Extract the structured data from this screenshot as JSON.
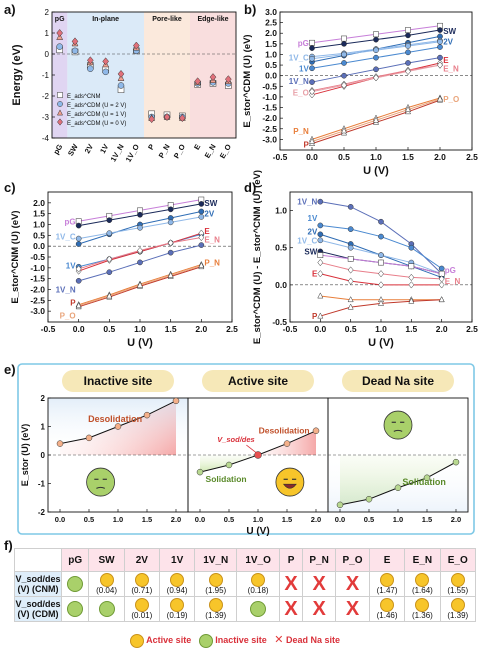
{
  "chart_data": [
    {
      "id": "a",
      "type": "scatter",
      "ylabel": "Energy (eV)",
      "ylim": [
        -4,
        2
      ],
      "yticks": [
        2,
        1,
        0,
        -1,
        -2,
        -3,
        -4
      ],
      "categories": [
        "pG",
        "SW",
        "2V",
        "1V",
        "1V_N",
        "1V_O",
        "P",
        "P_N",
        "P_O",
        "E",
        "E_N",
        "E_O"
      ],
      "regions": [
        {
          "label": "pG",
          "from": 0,
          "to": 0,
          "color": "#d6c7ee"
        },
        {
          "label": "In-plane",
          "from": 1,
          "to": 5,
          "color": "#cfe3f6"
        },
        {
          "label": "Pore-like",
          "from": 6,
          "to": 8,
          "color": "#f9e2d0"
        },
        {
          "label": "Edge-like",
          "from": 9,
          "to": 11,
          "color": "#f7d3d3"
        }
      ],
      "series": [
        {
          "name": "E_ads^CNM",
          "marker": "square",
          "color": "#555555",
          "values": [
            0.2,
            0.1,
            -0.55,
            -0.75,
            -1.7,
            0.15,
            -2.85,
            -2.9,
            -2.95,
            -1.45,
            -1.4,
            -1.5
          ]
        },
        {
          "name": "E_ads^CDM (U = 2 V)",
          "marker": "circle",
          "color": "#8fb8e8",
          "values": [
            0.35,
            0.15,
            -0.7,
            -0.85,
            -1.5,
            0.15,
            -3.0,
            -3.0,
            -3.0,
            -1.4,
            -1.35,
            -1.4
          ]
        },
        {
          "name": "E_ads^CDM (U = 1 V)",
          "marker": "triangle",
          "color": "#f0a090",
          "values": [
            0.8,
            0.5,
            -0.4,
            -0.5,
            -1.15,
            0.3,
            -3.05,
            -3.0,
            -3.05,
            -1.35,
            -1.25,
            -1.3
          ]
        },
        {
          "name": "E_ads^CDM (U = 0 V)",
          "marker": "diamond",
          "color": "#e0707a",
          "values": [
            1.0,
            0.6,
            -0.3,
            -0.35,
            -0.95,
            0.4,
            -3.1,
            -3.0,
            -3.05,
            -1.3,
            -1.1,
            -1.2
          ]
        }
      ],
      "legend": [
        "E_ads^CNM",
        "E_ads^CDM (U = 2 V)",
        "E_ads^CDM (U = 1 V)",
        "E_ads^CDM (U = 0 V)"
      ]
    },
    {
      "id": "b",
      "type": "line",
      "ylabel": "E_stor^CDM (U) (eV)",
      "xlabel": "U (V)",
      "xlim": [
        -0.5,
        2.5
      ],
      "ylim": [
        -3.5,
        3.0
      ],
      "xticks": [
        -0.5,
        0.0,
        0.5,
        1.0,
        1.5,
        2.0,
        2.5
      ],
      "yticks": [
        3.0,
        2.5,
        2.0,
        1.5,
        1.0,
        0.5,
        0.0,
        -0.5,
        -1.0,
        -1.5,
        -2.0,
        -2.5,
        -3.0
      ],
      "x": [
        0,
        0.5,
        1.0,
        1.5,
        2.0
      ],
      "series": [
        {
          "name": "pG",
          "color": "#c77fd9",
          "marker": "square",
          "values": [
            1.55,
            1.75,
            1.95,
            2.15,
            2.35
          ]
        },
        {
          "name": "SW",
          "color": "#1b2a5a",
          "marker": "circle",
          "values": [
            1.3,
            1.5,
            1.7,
            1.9,
            2.15
          ]
        },
        {
          "name": "2V",
          "color": "#2f6db5",
          "marker": "circle",
          "values": [
            0.65,
            0.95,
            1.25,
            1.55,
            1.85
          ]
        },
        {
          "name": "1V_C",
          "color": "#8fb8e8",
          "marker": "circle",
          "values": [
            0.9,
            1.05,
            1.25,
            1.45,
            1.65
          ]
        },
        {
          "name": "1V",
          "color": "#4a89d0",
          "marker": "circle",
          "values": [
            0.35,
            0.6,
            0.85,
            1.1,
            1.35
          ]
        },
        {
          "name": "1V_N",
          "color": "#5b6fb8",
          "marker": "circle",
          "values": [
            -0.3,
            0.0,
            0.3,
            0.6,
            0.85
          ]
        },
        {
          "name": "1V_O",
          "color": "#8fb8e8",
          "marker": "circle",
          "values": [
            0.8,
            1.0,
            1.2,
            1.4,
            1.6
          ]
        },
        {
          "name": "E",
          "color": "#d9303a",
          "marker": "diamond",
          "values": [
            -0.9,
            -0.5,
            -0.1,
            0.25,
            0.6
          ]
        },
        {
          "name": "E_N",
          "color": "#e87e8a",
          "marker": "diamond",
          "values": [
            -0.7,
            -0.4,
            -0.05,
            0.25,
            0.5
          ]
        },
        {
          "name": "E_O",
          "color": "#e8a0a8",
          "marker": "diamond",
          "values": [
            -0.75,
            -0.45,
            -0.1,
            0.2,
            0.5
          ]
        },
        {
          "name": "P_N",
          "color": "#e87e3a",
          "marker": "triangle",
          "values": [
            -3.0,
            -2.5,
            -2.0,
            -1.5,
            -1.05
          ]
        },
        {
          "name": "P",
          "color": "#c0392b",
          "marker": "triangle",
          "values": [
            -3.2,
            -2.7,
            -2.2,
            -1.7,
            -1.15
          ]
        },
        {
          "name": "P_O",
          "color": "#e9a47a",
          "marker": "triangle",
          "values": [
            -3.1,
            -2.6,
            -2.1,
            -1.6,
            -1.1
          ]
        }
      ],
      "labels": [
        "pG",
        "SW",
        "2V",
        "1V_C",
        "1V",
        "1V_N",
        "1V_O",
        "E",
        "E_N",
        "E_O",
        "P_N",
        "P",
        "P_O"
      ]
    },
    {
      "id": "c",
      "type": "line",
      "ylabel": "E_stor^CNM (U) (eV)",
      "xlabel": "U (V)",
      "xlim": [
        -0.5,
        2.5
      ],
      "ylim": [
        -3.5,
        2.5
      ],
      "xticks": [
        -0.5,
        0.0,
        0.5,
        1.0,
        1.5,
        2.0,
        2.5
      ],
      "yticks": [
        2.0,
        1.5,
        1.0,
        0.5,
        0.0,
        -0.5,
        -1.0,
        -1.5,
        -2.0,
        -2.5,
        -3.0
      ],
      "x": [
        0,
        0.5,
        1.0,
        1.5,
        2.0
      ],
      "series": [
        {
          "name": "pG",
          "color": "#c77fd9",
          "marker": "square",
          "values": [
            1.15,
            1.4,
            1.65,
            1.9,
            2.15
          ]
        },
        {
          "name": "SW",
          "color": "#1b2a5a",
          "marker": "circle",
          "values": [
            0.95,
            1.2,
            1.45,
            1.7,
            1.95
          ]
        },
        {
          "name": "2V",
          "color": "#2f6db5",
          "marker": "circle",
          "values": [
            0.1,
            0.55,
            1.0,
            1.3,
            1.6
          ]
        },
        {
          "name": "1V_C",
          "color": "#8fb8e8",
          "marker": "circle",
          "values": [
            0.35,
            0.6,
            0.85,
            1.1,
            1.35
          ]
        },
        {
          "name": "1V",
          "color": "#4a89d0",
          "marker": "circle",
          "values": [
            -0.95,
            -0.6,
            -0.25,
            0.15,
            0.55
          ]
        },
        {
          "name": "1V_N",
          "color": "#5b6fb8",
          "marker": "circle",
          "values": [
            -1.6,
            -1.2,
            -0.75,
            -0.3,
            0.05
          ]
        },
        {
          "name": "E",
          "color": "#d9303a",
          "marker": "diamond",
          "values": [
            -1.15,
            -0.65,
            -0.25,
            0.15,
            0.6
          ]
        },
        {
          "name": "E_N",
          "color": "#e87e8a",
          "marker": "diamond",
          "values": [
            -1.05,
            -0.6,
            -0.2,
            0.15,
            0.4
          ]
        },
        {
          "name": "P_N",
          "color": "#e87e3a",
          "marker": "triangle",
          "values": [
            -2.7,
            -2.25,
            -1.75,
            -1.3,
            -0.85
          ]
        },
        {
          "name": "P",
          "color": "#c0392b",
          "marker": "triangle",
          "values": [
            -2.8,
            -2.35,
            -1.85,
            -1.4,
            -0.95
          ]
        },
        {
          "name": "P_O",
          "color": "#e9a47a",
          "marker": "triangle",
          "values": [
            -2.75,
            -2.3,
            -1.8,
            -1.35,
            -0.9
          ]
        }
      ],
      "labels": [
        "pG",
        "SW",
        "2V",
        "1V_C",
        "1V",
        "1V_N",
        "E",
        "E_N",
        "P_N",
        "P",
        "P_O"
      ]
    },
    {
      "id": "d",
      "type": "line",
      "ylabel": "E_stor^CDM (U) - E_stor^CNM (U) (eV)",
      "xlabel": "U (V)",
      "xlim": [
        -0.5,
        2.5
      ],
      "ylim": [
        -0.5,
        1.25
      ],
      "xticks": [
        -0.5,
        0.0,
        0.5,
        1.0,
        1.5,
        2.0,
        2.5
      ],
      "yticks": [
        1.0,
        0.5,
        0.0,
        -0.5
      ],
      "x": [
        0,
        0.5,
        1.0,
        1.5,
        2.0
      ],
      "series": [
        {
          "name": "1V_N",
          "color": "#5b6fb8",
          "marker": "circle",
          "values": [
            1.12,
            1.05,
            0.85,
            0.55,
            0.15
          ]
        },
        {
          "name": "1V",
          "color": "#4a89d0",
          "marker": "circle",
          "values": [
            0.8,
            0.75,
            0.65,
            0.5,
            0.22
          ]
        },
        {
          "name": "2V",
          "color": "#2f6db5",
          "marker": "circle",
          "values": [
            0.68,
            0.55,
            0.4,
            0.25,
            0.1
          ]
        },
        {
          "name": "1V_C",
          "color": "#8fb8e8",
          "marker": "circle",
          "values": [
            0.6,
            0.5,
            0.4,
            0.3,
            0.15
          ]
        },
        {
          "name": "SW",
          "color": "#1b2a5a",
          "marker": "circle",
          "values": [
            0.45,
            0.35,
            0.3,
            0.25,
            0.15
          ]
        },
        {
          "name": "pG",
          "color": "#c77fd9",
          "marker": "square",
          "values": [
            0.4,
            0.35,
            0.3,
            0.25,
            0.15
          ]
        },
        {
          "name": "E",
          "color": "#d9303a",
          "marker": "diamond",
          "values": [
            0.15,
            0.05,
            0.0,
            0.0,
            0.0
          ]
        },
        {
          "name": "E_N",
          "color": "#e87e8a",
          "marker": "diamond",
          "values": [
            0.3,
            0.2,
            0.15,
            0.1,
            0.08
          ]
        },
        {
          "name": "P_N",
          "color": "#e87e3a",
          "marker": "triangle",
          "values": [
            -0.15,
            -0.2,
            -0.2,
            -0.2,
            -0.2
          ]
        },
        {
          "name": "P",
          "color": "#c0392b",
          "marker": "triangle",
          "values": [
            -0.42,
            -0.3,
            -0.25,
            -0.22,
            -0.2
          ]
        }
      ],
      "labels": [
        "1V_N",
        "1V",
        "2V",
        "1V_C",
        "SW",
        "pG",
        "E",
        "E_N",
        "P_N",
        "P"
      ]
    },
    {
      "id": "e",
      "type": "line",
      "ylabel": "E_stor (U) (eV)",
      "xlabel": "U (V)",
      "xlim": [
        -0.3,
        6.9
      ],
      "ylim": [
        -2,
        2
      ],
      "yticks": [
        2,
        1,
        0,
        -1,
        -2
      ],
      "subpanels": [
        {
          "title": "Inactive site",
          "xticks": [
            0.0,
            0.5,
            1.0,
            1.5,
            2.0
          ],
          "x": [
            0,
            0.5,
            1.0,
            1.5,
            2.0
          ],
          "values": [
            0.4,
            0.6,
            1.0,
            1.4,
            1.9
          ],
          "annotation": "Desolidation"
        },
        {
          "title": "Active site",
          "xticks": [
            0.0,
            0.5,
            1.0,
            1.5,
            2.0
          ],
          "x": [
            0,
            0.5,
            1.0,
            1.5,
            2.0
          ],
          "values": [
            -0.6,
            -0.35,
            0.0,
            0.4,
            0.85
          ],
          "annotation": "Desolidation",
          "annotation2": "Solidation",
          "marker_label": "V_sod/des"
        },
        {
          "title": "Dead Na site",
          "xticks": [
            0.0,
            0.5,
            1.0,
            1.5,
            2.0
          ],
          "x": [
            0,
            0.5,
            1.0,
            1.5,
            2.0
          ],
          "values": [
            -1.75,
            -1.55,
            -1.15,
            -0.8,
            -0.25
          ],
          "annotation": "Solidation"
        }
      ]
    }
  ],
  "panel_labels": {
    "a": "a)",
    "b": "b)",
    "c": "c)",
    "d": "d)",
    "e": "e)",
    "f": "f)"
  },
  "table": {
    "columns": [
      "pG",
      "SW",
      "2V",
      "1V",
      "1V_N",
      "1V_O",
      "P",
      "P_N",
      "P_O",
      "E",
      "E_N",
      "E_O"
    ],
    "rows": [
      {
        "label": "V_sod/des (V) (CNM)",
        "cells": [
          "inactive",
          "(0.04)",
          "(0.71)",
          "(0.94)",
          "(1.95)",
          "(0.18)",
          "X",
          "X",
          "X",
          "(1.47)",
          "(1.64)",
          "(1.55)"
        ]
      },
      {
        "label": "V_sod/des (V) (CDM)",
        "cells": [
          "inactive",
          "inactive",
          "(0.01)",
          "(0.19)",
          "(1.39)",
          "inactive",
          "X",
          "X",
          "X",
          "(1.46)",
          "(1.36)",
          "(1.39)"
        ]
      }
    ],
    "legend": {
      "active": "Active site",
      "inactive": "Inactive site",
      "dead": "Dead Na site"
    }
  }
}
